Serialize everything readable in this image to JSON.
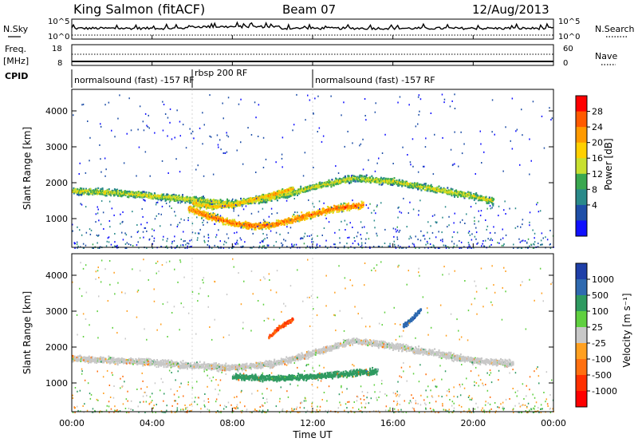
{
  "header": {
    "station": "King Salmon (fitACF)",
    "beam": "Beam 07",
    "date": "12/Aug/2013"
  },
  "left_labels": {
    "nsky": "N.Sky",
    "freq": "Freq.",
    "freq_unit": "[MHz]",
    "cpid": "CPID"
  },
  "right_labels": {
    "nsearch": "N.Search",
    "nave": "Nave"
  },
  "cpid_segments": [
    {
      "label": "normalsound (fast) -157 RF",
      "start_hour": 0
    },
    {
      "label": "rbsp 200 RF",
      "start_hour": 6
    },
    {
      "label": "normalsound (fast) -157 RF",
      "start_hour": 12
    }
  ],
  "noise_panel": {
    "left_ticks": [
      "10^5",
      "10^0"
    ],
    "right_ticks": [
      "10^5",
      "10^0"
    ]
  },
  "freq_panel": {
    "left_ticks": [
      "18",
      "8"
    ],
    "right_ticks": [
      "60",
      "0"
    ]
  },
  "power_colorbar": {
    "label": "Power [dB]",
    "ticks": [
      "28",
      "24",
      "20",
      "16",
      "12",
      "8",
      "4"
    ],
    "colors": [
      "#ff0000",
      "#ff5a00",
      "#ff9a00",
      "#ffd000",
      "#c8e030",
      "#3aa850",
      "#2a8a8a",
      "#1f4fa8",
      "#1010ff"
    ]
  },
  "velocity_colorbar": {
    "label": "Velocity [m s⁻¹]",
    "ticks": [
      "1000",
      "500",
      "100",
      "25",
      "-25",
      "-100",
      "-500",
      "-1000"
    ],
    "colors": [
      "#1f3fa8",
      "#2f6ab0",
      "#2e9a60",
      "#60d040",
      "#c8c8c8",
      "#ffa020",
      "#ff7010",
      "#ff3000",
      "#ff0000"
    ]
  },
  "chart_data": {
    "type": "heatmap",
    "xlabel": "Time UT",
    "ylabel": "Slant Range [km]",
    "x_ticks": [
      "00:00",
      "04:00",
      "08:00",
      "12:00",
      "16:00",
      "20:00",
      "00:00"
    ],
    "y_ticks": [
      "4000",
      "3000",
      "2000",
      "1000"
    ],
    "xlim_hours": [
      0,
      24
    ],
    "ylim_km": [
      200,
      4600
    ],
    "power_bands": [
      {
        "points": [
          [
            0,
            1800
          ],
          [
            2,
            1750
          ],
          [
            4,
            1650
          ],
          [
            6,
            1550
          ],
          [
            8,
            1450
          ],
          [
            10,
            1600
          ],
          [
            12,
            1900
          ],
          [
            14,
            2150
          ],
          [
            16,
            2050
          ],
          [
            18,
            1850
          ],
          [
            20,
            1650
          ],
          [
            21,
            1500
          ]
        ],
        "level": 0.55,
        "spread": 130
      },
      {
        "points": [
          [
            5.8,
            1300
          ],
          [
            7,
            1050
          ],
          [
            8,
            900
          ],
          [
            9,
            820
          ],
          [
            10,
            850
          ],
          [
            11,
            1000
          ],
          [
            12,
            1150
          ],
          [
            13,
            1300
          ],
          [
            14.5,
            1400
          ]
        ],
        "level": 0.8,
        "spread": 140
      },
      {
        "points": [
          [
            6,
            1450
          ],
          [
            7,
            1350
          ],
          [
            8,
            1400
          ],
          [
            9,
            1550
          ],
          [
            10,
            1700
          ],
          [
            11,
            1850
          ]
        ],
        "level": 0.7,
        "spread": 100
      }
    ],
    "velocity_bands": [
      {
        "points": [
          [
            0,
            1700
          ],
          [
            2,
            1650
          ],
          [
            4,
            1600
          ],
          [
            6,
            1500
          ],
          [
            8,
            1450
          ],
          [
            10,
            1550
          ],
          [
            12,
            1850
          ],
          [
            14,
            2200
          ],
          [
            16,
            2050
          ],
          [
            18,
            1850
          ],
          [
            20,
            1650
          ],
          [
            22,
            1550
          ]
        ],
        "velocity": 0,
        "spread": 130
      },
      {
        "points": [
          [
            8,
            1200
          ],
          [
            10,
            1150
          ],
          [
            12,
            1200
          ],
          [
            14,
            1300
          ],
          [
            15.2,
            1350
          ]
        ],
        "velocity": 150,
        "spread": 120
      },
      {
        "points": [
          [
            9.8,
            2300
          ],
          [
            10.3,
            2550
          ],
          [
            11,
            2800
          ]
        ],
        "velocity": -500,
        "spread": 80
      },
      {
        "points": [
          [
            16.5,
            2600
          ],
          [
            17,
            2850
          ],
          [
            17.4,
            3100
          ]
        ],
        "velocity": 800,
        "spread": 80
      }
    ]
  }
}
